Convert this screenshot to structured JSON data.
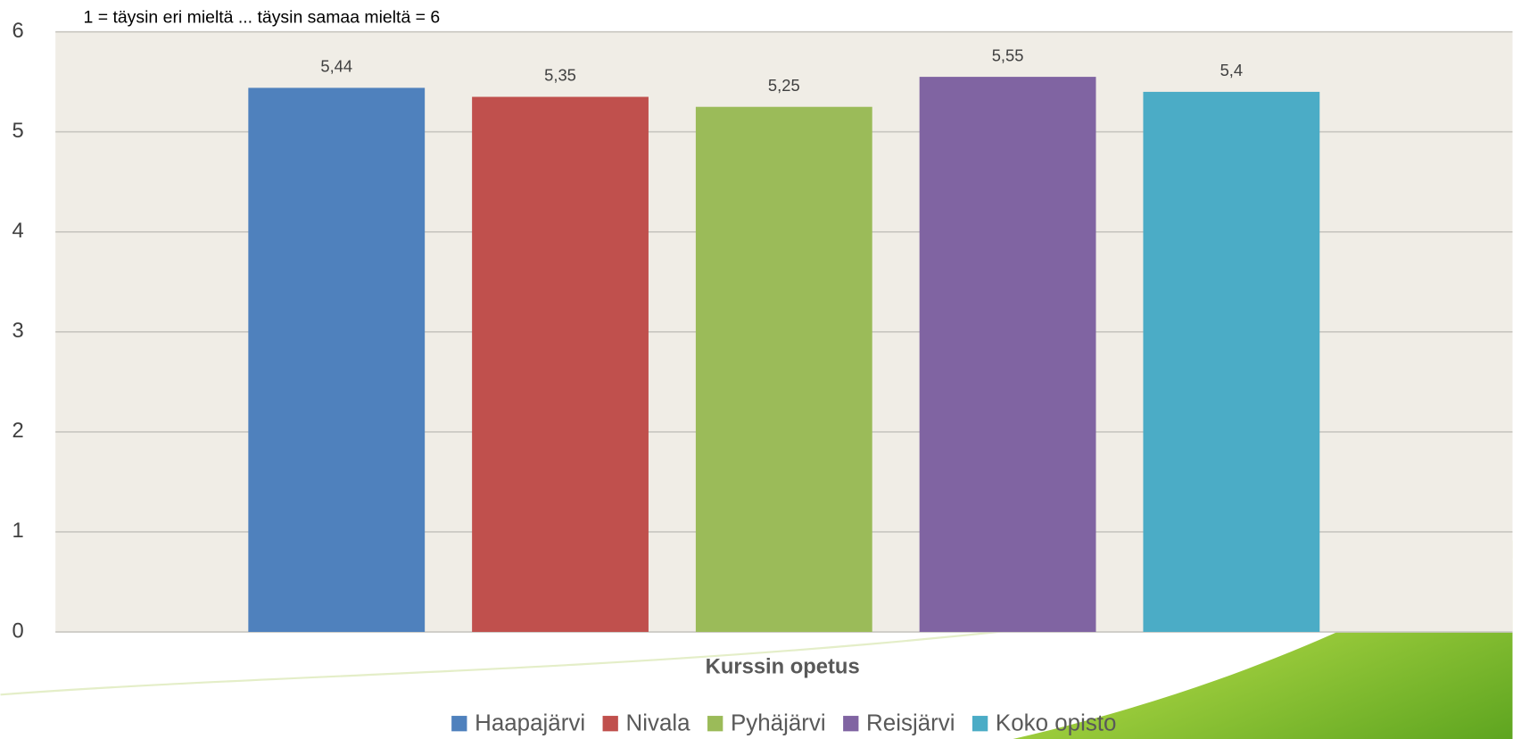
{
  "chart_data": {
    "type": "bar",
    "subtitle": "1 = täysin eri mieltä ... täysin samaa mieltä = 6",
    "categories": [
      "Kurssin opetus"
    ],
    "series": [
      {
        "name": "Haapajärvi",
        "color": "#4f81bd",
        "values": [
          5.44
        ],
        "value_labels": [
          "5,44"
        ]
      },
      {
        "name": "Nivala",
        "color": "#c0504d",
        "values": [
          5.35
        ],
        "value_labels": [
          "5,35"
        ]
      },
      {
        "name": "Pyhäjärvi",
        "color": "#9bbb59",
        "values": [
          5.25
        ],
        "value_labels": [
          "5,25"
        ]
      },
      {
        "name": "Reisjärvi",
        "color": "#8064a2",
        "values": [
          5.55
        ],
        "value_labels": [
          "5,55"
        ]
      },
      {
        "name": "Koko opisto",
        "color": "#4bacc6",
        "values": [
          5.4
        ],
        "value_labels": [
          "5,4"
        ]
      }
    ],
    "ylim": [
      0,
      6
    ],
    "yticks": [
      0,
      1,
      2,
      3,
      4,
      5,
      6
    ],
    "grid": true,
    "legend": "bottom"
  }
}
